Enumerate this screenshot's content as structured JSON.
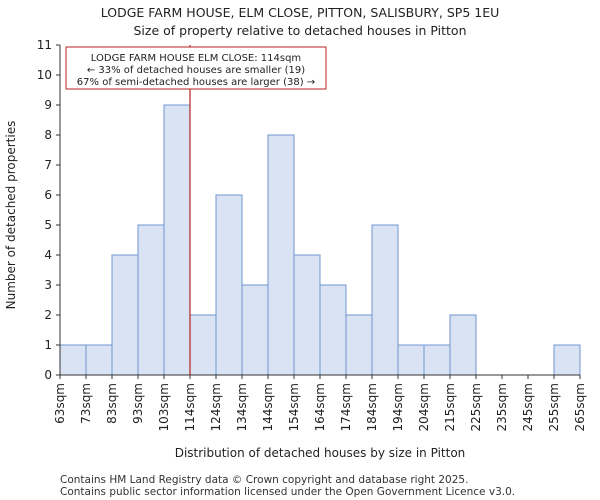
{
  "chart_data": {
    "type": "histogram",
    "title": "LODGE FARM HOUSE, ELM CLOSE, PITTON, SALISBURY, SP5 1EU",
    "subtitle": "Size of property relative to detached houses in Pitton",
    "xlabel": "Distribution of detached houses by size in Pitton",
    "ylabel": "Number of detached properties",
    "ylim": [
      0,
      11
    ],
    "yticks": [
      "0",
      "1",
      "2",
      "3",
      "4",
      "5",
      "6",
      "7",
      "8",
      "9",
      "10",
      "11"
    ],
    "bin_edges": [
      "63sqm",
      "73sqm",
      "83sqm",
      "93sqm",
      "103sqm",
      "114sqm",
      "124sqm",
      "134sqm",
      "144sqm",
      "154sqm",
      "164sqm",
      "174sqm",
      "184sqm",
      "194sqm",
      "204sqm",
      "215sqm",
      "225sqm",
      "235sqm",
      "245sqm",
      "255sqm",
      "265sqm"
    ],
    "values": [
      1,
      1,
      4,
      5,
      9,
      2,
      6,
      3,
      8,
      4,
      3,
      2,
      5,
      1,
      1,
      2,
      0,
      0,
      0,
      1
    ],
    "marker": {
      "value_sqm": 114,
      "bin_index": 5
    },
    "annotation": {
      "line1": "LODGE FARM HOUSE ELM CLOSE: 114sqm",
      "line2": "← 33% of detached houses are smaller (19)",
      "line3": "67% of semi-detached houses are larger (38) →"
    },
    "colors": {
      "bar_fill": "#dae3f3",
      "bar_edge": "#6f95d0",
      "marker": "#b22222",
      "axis": "#333333"
    }
  },
  "footer": {
    "line1": "Contains HM Land Registry data © Crown copyright and database right 2025.",
    "line2": "Contains public sector information licensed under the Open Government Licence v3.0."
  }
}
